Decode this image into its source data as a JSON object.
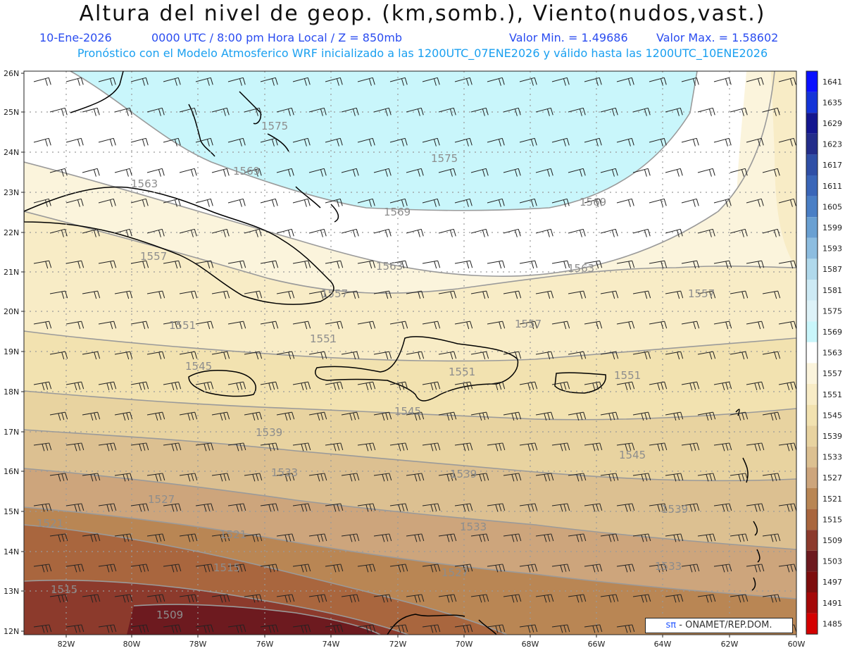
{
  "header": {
    "title": "Altura del nivel de geop. (km,somb.), Viento(nudos,vast.)",
    "date": "10-Ene-2026",
    "time": "0000 UTC / 8:00 pm Hora Local / Z = 850mb",
    "min": "Valor Min. = 1.49686",
    "max": "Valor Max. = 1.58602",
    "forecast": "Pronóstico con el Modelo Atmosferico WRF inicializado a las 1200UTC_07ENE2026 y válido hasta las  1200UTC_10ENE2026"
  },
  "axes": {
    "lat_labels": [
      "26N",
      "25N",
      "24N",
      "23N",
      "22N",
      "21N",
      "20N",
      "19N",
      "18N",
      "17N",
      "16N",
      "15N",
      "14N",
      "13N",
      "12N"
    ],
    "lon_labels": [
      "82W",
      "80W",
      "78W",
      "76W",
      "74W",
      "72W",
      "70W",
      "68W",
      "66W",
      "64W",
      "62W",
      "60W"
    ]
  },
  "colorbar": {
    "levels": [
      "1641",
      "1635",
      "1629",
      "1623",
      "1617",
      "1611",
      "1605",
      "1599",
      "1593",
      "1587",
      "1581",
      "1575",
      "1569",
      "1563",
      "1557",
      "1551",
      "1545",
      "1539",
      "1533",
      "1527",
      "1521",
      "1515",
      "1509",
      "1503",
      "1497",
      "1491",
      "1485"
    ],
    "colors": [
      "#0a10ff",
      "#1434d8",
      "#13168f",
      "#232d8a",
      "#2f4fa6",
      "#3a66b8",
      "#4a7fc5",
      "#6aa0d2",
      "#8dbde0",
      "#b0d9ec",
      "#cdeaf5",
      "#ddf2f8",
      "#c9f6fb",
      "#ffffff",
      "#fbf4dc",
      "#f8ecc6",
      "#f2e2b0",
      "#e8d3a0",
      "#dcc091",
      "#cda57c",
      "#b98654",
      "#a9663e",
      "#8c3a2c",
      "#6d1a1f",
      "#7d0d0d",
      "#a40808",
      "#d40000"
    ]
  },
  "contour_labels": [
    "1575",
    "1575",
    "1569",
    "1569",
    "1569",
    "1563",
    "1563",
    "1563",
    "1557",
    "1557",
    "1557",
    "1557",
    "1551",
    "1551",
    "1551",
    "1551",
    "1545",
    "1545",
    "1545",
    "1539",
    "1539",
    "1539",
    "1533",
    "1533",
    "1533",
    "1527",
    "1527",
    "1521",
    "1521",
    "1515",
    "1515",
    "1509"
  ],
  "credit": {
    "logo": "sπ",
    "text": " - ONAMET/REP.DOM."
  }
}
